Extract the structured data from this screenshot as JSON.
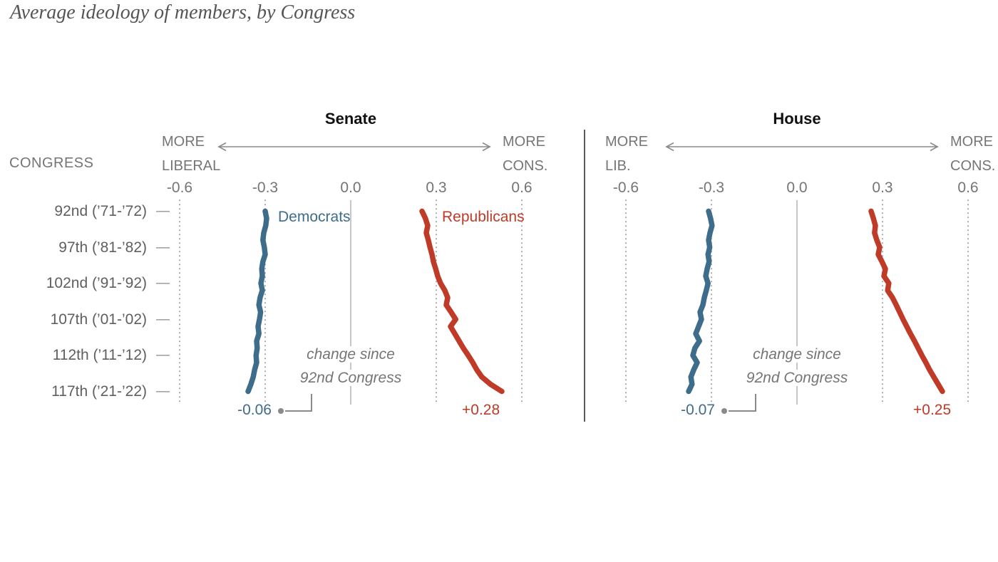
{
  "title": "Average ideology of members, by Congress",
  "left_axis": {
    "header": "CONGRESS",
    "tick_glyph": "—",
    "rows": [
      {
        "label": "92nd (’71-’72)"
      },
      {
        "label": "97th (’81-’82)"
      },
      {
        "label": "102nd (’91-’92)"
      },
      {
        "label": "107th (’01-’02)"
      },
      {
        "label": "112th (’11-’12)"
      },
      {
        "label": "117th (’21-’22)"
      }
    ]
  },
  "colors": {
    "democrat": "#3e6c8b",
    "republican": "#bf3a27",
    "grid": "#9c9c9c",
    "zero_line": "#b8b8b8",
    "gray_text": "#757575"
  },
  "chart_data": [
    {
      "type": "line",
      "panel": "Senate",
      "direction_left": [
        "MORE",
        "LIBERAL"
      ],
      "direction_right": [
        "MORE",
        "CONS."
      ],
      "x_ticks": [
        "-0.6",
        "-0.3",
        "0.0",
        "0.3",
        "0.6"
      ],
      "x_tick_values": [
        -0.6,
        -0.3,
        0.0,
        0.3,
        0.6
      ],
      "xlim": [
        -0.6,
        0.6
      ],
      "congresses": [
        92,
        117
      ],
      "annotation_lines": [
        "change since",
        "92nd Congress"
      ],
      "series": [
        {
          "name": "Democrats",
          "color": "#3e6c8b",
          "change_label": "-0.06",
          "values": [
            -0.3,
            -0.295,
            -0.298,
            -0.305,
            -0.308,
            -0.303,
            -0.3,
            -0.308,
            -0.312,
            -0.31,
            -0.315,
            -0.31,
            -0.318,
            -0.322,
            -0.316,
            -0.32,
            -0.325,
            -0.322,
            -0.33,
            -0.328,
            -0.332,
            -0.33,
            -0.337,
            -0.342,
            -0.35,
            -0.36
          ]
        },
        {
          "name": "Republicans",
          "color": "#bf3a27",
          "change_label": "+0.28",
          "values": [
            0.25,
            0.262,
            0.27,
            0.265,
            0.272,
            0.278,
            0.285,
            0.29,
            0.298,
            0.305,
            0.315,
            0.33,
            0.34,
            0.335,
            0.352,
            0.368,
            0.35,
            0.365,
            0.38,
            0.395,
            0.412,
            0.428,
            0.442,
            0.46,
            0.49,
            0.53
          ]
        }
      ]
    },
    {
      "type": "line",
      "panel": "House",
      "direction_left": [
        "MORE",
        "LIB."
      ],
      "direction_right": [
        "MORE",
        "CONS."
      ],
      "x_ticks": [
        "-0.6",
        "-0.3",
        "0.0",
        "0.3",
        "0.6"
      ],
      "x_tick_values": [
        -0.6,
        -0.3,
        0.0,
        0.3,
        0.6
      ],
      "xlim": [
        -0.6,
        0.6
      ],
      "congresses": [
        92,
        117
      ],
      "annotation_lines": [
        "change since",
        "92nd Congress"
      ],
      "series": [
        {
          "name": "Democrats",
          "color": "#3e6c8b",
          "change_label": "-0.07",
          "values": [
            -0.31,
            -0.303,
            -0.298,
            -0.305,
            -0.31,
            -0.306,
            -0.312,
            -0.308,
            -0.315,
            -0.32,
            -0.312,
            -0.318,
            -0.325,
            -0.33,
            -0.34,
            -0.335,
            -0.345,
            -0.355,
            -0.342,
            -0.358,
            -0.365,
            -0.35,
            -0.362,
            -0.372,
            -0.368,
            -0.38
          ]
        },
        {
          "name": "Republicans",
          "color": "#bf3a27",
          "change_label": "+0.25",
          "values": [
            0.26,
            0.268,
            0.275,
            0.272,
            0.28,
            0.29,
            0.285,
            0.298,
            0.31,
            0.305,
            0.322,
            0.318,
            0.335,
            0.348,
            0.36,
            0.372,
            0.385,
            0.398,
            0.412,
            0.425,
            0.438,
            0.452,
            0.465,
            0.48,
            0.495,
            0.51
          ]
        }
      ]
    }
  ]
}
